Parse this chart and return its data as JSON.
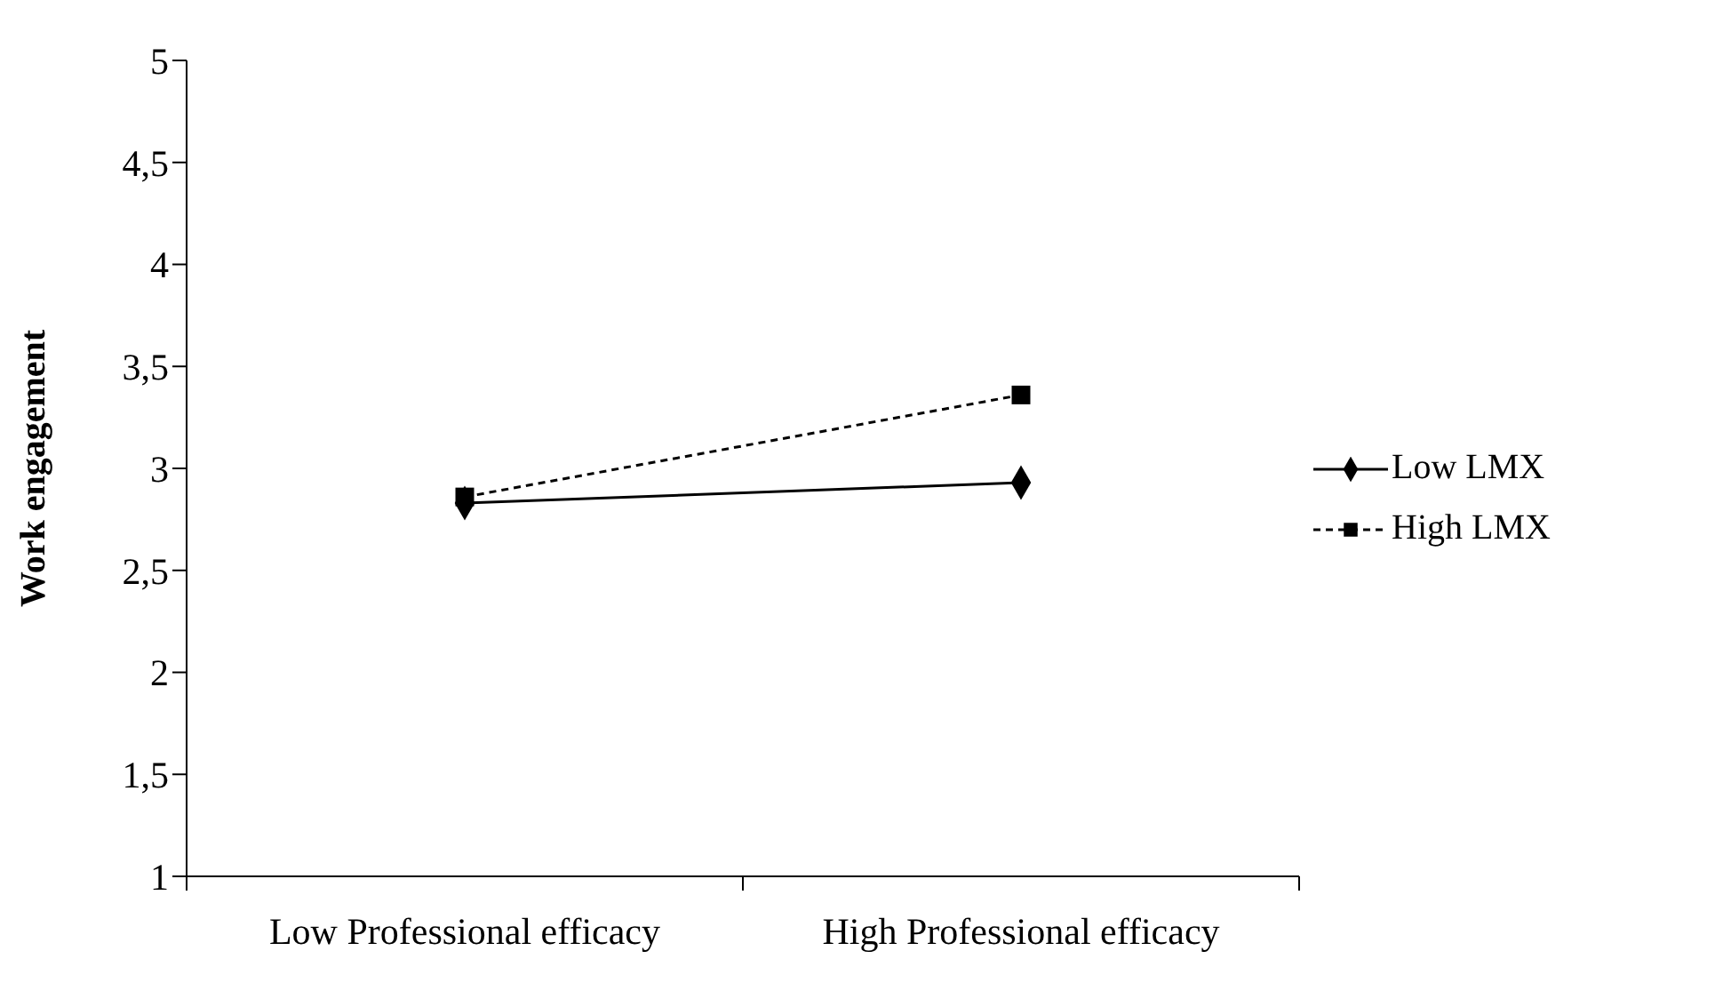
{
  "chart_data": {
    "type": "line",
    "ylabel": "Work engagement",
    "categories": [
      "Low Professional efficacy",
      "High Professional efficacy"
    ],
    "series": [
      {
        "name": "Low LMX",
        "color": "#000000",
        "values": [
          2.83,
          2.93
        ],
        "marker": "diamond",
        "line_style": "solid"
      },
      {
        "name": "High LMX",
        "color": "#000000",
        "values": [
          2.86,
          3.36
        ],
        "marker": "square",
        "line_style": "dashed"
      }
    ],
    "ylim": [
      1,
      5
    ],
    "yticks": [
      1,
      {
        "value": 1.5,
        "label": "1,5"
      },
      2,
      {
        "value": 2.5,
        "label": "2,5"
      },
      3,
      {
        "value": 3.5,
        "label": "3,5"
      },
      4,
      {
        "value": 4.5,
        "label": "4,5"
      },
      5
    ],
    "grid": false,
    "legend": "right"
  }
}
